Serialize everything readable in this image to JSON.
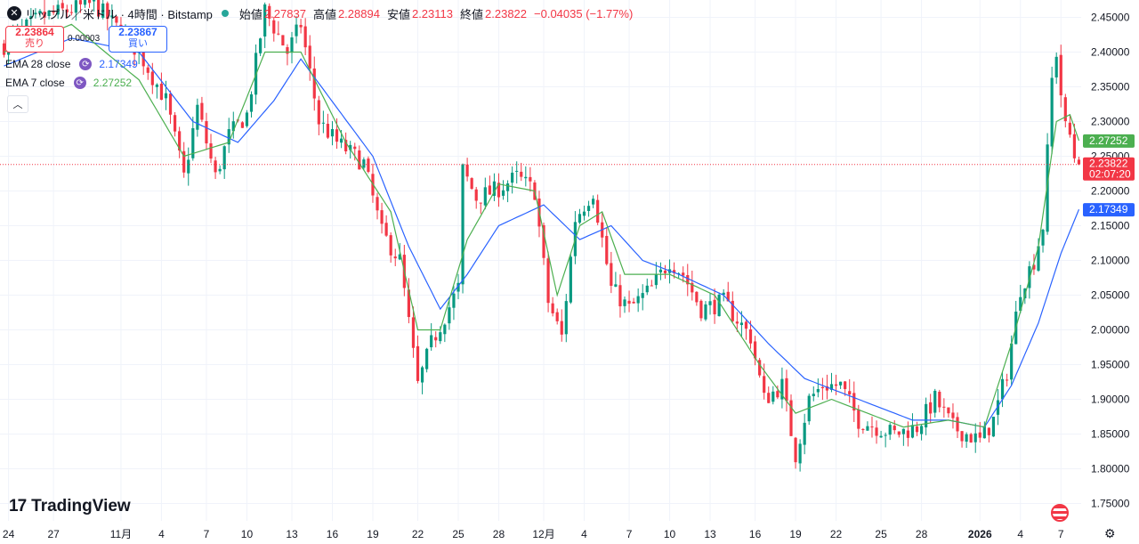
{
  "header": {
    "close_icon": "close-icon",
    "title": "リップル／米ドル · 4時間 · Bitstamp",
    "market_status_color": "#26a69a",
    "ohlc": [
      {
        "label": "始値",
        "value": "2.27837"
      },
      {
        "label": "高値",
        "value": "2.28894"
      },
      {
        "label": "安値",
        "value": "2.23113"
      },
      {
        "label": "終値",
        "value": "2.23822"
      },
      {
        "label": "",
        "value": "−0.04035 (−1.77%)"
      }
    ]
  },
  "trade": {
    "sell_price": "2.23864",
    "sell_label": "売り",
    "spread": "0.00003",
    "buy_price": "2.23867",
    "buy_label": "買い"
  },
  "indicators": [
    {
      "name": "EMA 28 close",
      "value": "2.17349",
      "color": "#2962ff",
      "icon": "refresh-icon"
    },
    {
      "name": "EMA 7 close",
      "value": "2.27252",
      "color": "#4caf50",
      "icon": "refresh-icon"
    }
  ],
  "collapse_icon": "chevron-up-icon",
  "logo_text": "TradingView",
  "price_labels": [
    {
      "value": "2.27252",
      "color": "#4caf50"
    },
    {
      "value": "2.23822",
      "sub": "02:07:20",
      "color": "#f23645"
    },
    {
      "value": "2.17349",
      "color": "#2962ff"
    }
  ],
  "colors": {
    "up": "#089981",
    "down": "#f23645",
    "ema_fast": "#4caf50",
    "ema_slow": "#2962ff",
    "grid": "#f0f3fa"
  },
  "chart_data": {
    "type": "candlestick",
    "ylim": [
      1.725,
      2.475
    ],
    "y_ticks": [
      "2.45000",
      "2.40000",
      "2.35000",
      "2.30000",
      "2.25000",
      "2.20000",
      "2.15000",
      "2.10000",
      "2.05000",
      "2.00000",
      "1.95000",
      "1.90000",
      "1.85000",
      "1.80000",
      "1.75000"
    ],
    "x_ticks": [
      {
        "label": "24",
        "idx": 1
      },
      {
        "label": "27",
        "idx": 11
      },
      {
        "label": "11月",
        "idx": 26
      },
      {
        "label": "4",
        "idx": 35
      },
      {
        "label": "7",
        "idx": 45
      },
      {
        "label": "10",
        "idx": 54
      },
      {
        "label": "13",
        "idx": 64
      },
      {
        "label": "16",
        "idx": 73
      },
      {
        "label": "19",
        "idx": 82
      },
      {
        "label": "22",
        "idx": 92
      },
      {
        "label": "25",
        "idx": 101
      },
      {
        "label": "28",
        "idx": 110
      },
      {
        "label": "12月",
        "idx": 120
      },
      {
        "label": "4",
        "idx": 129
      },
      {
        "label": "7",
        "idx": 139
      },
      {
        "label": "10",
        "idx": 148
      },
      {
        "label": "13",
        "idx": 157
      },
      {
        "label": "16",
        "idx": 167
      },
      {
        "label": "19",
        "idx": 176
      },
      {
        "label": "22",
        "idx": 185
      },
      {
        "label": "25",
        "idx": 195
      },
      {
        "label": "28",
        "idx": 204
      },
      {
        "label": "2026",
        "idx": 217,
        "bold": true
      },
      {
        "label": "4",
        "idx": 226
      },
      {
        "label": "7",
        "idx": 235
      }
    ],
    "last_close": 2.23822,
    "close_path": [
      [
        0,
        2.41
      ],
      [
        8,
        2.45
      ],
      [
        20,
        2.47
      ],
      [
        30,
        2.4
      ],
      [
        36,
        2.33
      ],
      [
        40,
        2.22
      ],
      [
        43,
        2.32
      ],
      [
        47,
        2.22
      ],
      [
        50,
        2.28
      ],
      [
        54,
        2.31
      ],
      [
        58,
        2.46
      ],
      [
        63,
        2.4
      ],
      [
        66,
        2.44
      ],
      [
        70,
        2.3
      ],
      [
        74,
        2.27
      ],
      [
        80,
        2.24
      ],
      [
        84,
        2.14
      ],
      [
        88,
        2.1
      ],
      [
        92,
        1.92
      ],
      [
        95,
        1.98
      ],
      [
        98,
        2.02
      ],
      [
        101,
        2.06
      ],
      [
        102,
        2.23
      ],
      [
        105,
        2.19
      ],
      [
        109,
        2.2
      ],
      [
        114,
        2.22
      ],
      [
        118,
        2.2
      ],
      [
        121,
        2.04
      ],
      [
        124,
        1.99
      ],
      [
        127,
        2.16
      ],
      [
        131,
        2.2
      ],
      [
        135,
        2.06
      ],
      [
        139,
        2.03
      ],
      [
        144,
        2.06
      ],
      [
        148,
        2.1
      ],
      [
        151,
        2.08
      ],
      [
        155,
        2.03
      ],
      [
        160,
        2.04
      ],
      [
        166,
        1.99
      ],
      [
        169,
        1.9
      ],
      [
        173,
        1.92
      ],
      [
        176,
        1.82
      ],
      [
        179,
        1.9
      ],
      [
        182,
        1.92
      ],
      [
        186,
        1.92
      ],
      [
        190,
        1.87
      ],
      [
        194,
        1.86
      ],
      [
        198,
        1.85
      ],
      [
        203,
        1.86
      ],
      [
        207,
        1.9
      ],
      [
        211,
        1.86
      ],
      [
        214,
        1.85
      ],
      [
        217,
        1.84
      ],
      [
        220,
        1.87
      ],
      [
        223,
        1.94
      ],
      [
        226,
        2.06
      ],
      [
        229,
        2.1
      ],
      [
        231,
        2.15
      ],
      [
        233,
        2.36
      ],
      [
        234,
        2.4
      ],
      [
        235,
        2.34
      ],
      [
        236,
        2.29
      ],
      [
        237,
        2.28
      ],
      [
        238,
        2.25
      ],
      [
        239,
        2.23822
      ]
    ],
    "ema_fast_path": [
      [
        0,
        2.4
      ],
      [
        15,
        2.44
      ],
      [
        30,
        2.36
      ],
      [
        40,
        2.25
      ],
      [
        50,
        2.27
      ],
      [
        58,
        2.4
      ],
      [
        66,
        2.4
      ],
      [
        76,
        2.27
      ],
      [
        86,
        2.17
      ],
      [
        92,
        2.0
      ],
      [
        97,
        2.0
      ],
      [
        103,
        2.13
      ],
      [
        110,
        2.21
      ],
      [
        118,
        2.2
      ],
      [
        123,
        2.05
      ],
      [
        128,
        2.15
      ],
      [
        133,
        2.17
      ],
      [
        138,
        2.08
      ],
      [
        148,
        2.08
      ],
      [
        158,
        2.05
      ],
      [
        168,
        1.95
      ],
      [
        176,
        1.88
      ],
      [
        184,
        1.9
      ],
      [
        192,
        1.88
      ],
      [
        200,
        1.86
      ],
      [
        210,
        1.87
      ],
      [
        218,
        1.86
      ],
      [
        224,
        1.98
      ],
      [
        230,
        2.12
      ],
      [
        234,
        2.3
      ],
      [
        237,
        2.31
      ],
      [
        239,
        2.27252
      ]
    ],
    "ema_slow_path": [
      [
        0,
        2.38
      ],
      [
        15,
        2.42
      ],
      [
        30,
        2.4
      ],
      [
        42,
        2.3
      ],
      [
        52,
        2.27
      ],
      [
        60,
        2.33
      ],
      [
        66,
        2.39
      ],
      [
        74,
        2.32
      ],
      [
        82,
        2.25
      ],
      [
        90,
        2.12
      ],
      [
        97,
        2.03
      ],
      [
        103,
        2.08
      ],
      [
        110,
        2.15
      ],
      [
        120,
        2.18
      ],
      [
        128,
        2.13
      ],
      [
        135,
        2.15
      ],
      [
        142,
        2.1
      ],
      [
        150,
        2.08
      ],
      [
        160,
        2.05
      ],
      [
        170,
        1.98
      ],
      [
        178,
        1.93
      ],
      [
        186,
        1.91
      ],
      [
        194,
        1.89
      ],
      [
        202,
        1.87
      ],
      [
        210,
        1.87
      ],
      [
        218,
        1.86
      ],
      [
        224,
        1.92
      ],
      [
        230,
        2.01
      ],
      [
        235,
        2.11
      ],
      [
        239,
        2.17349
      ]
    ]
  }
}
